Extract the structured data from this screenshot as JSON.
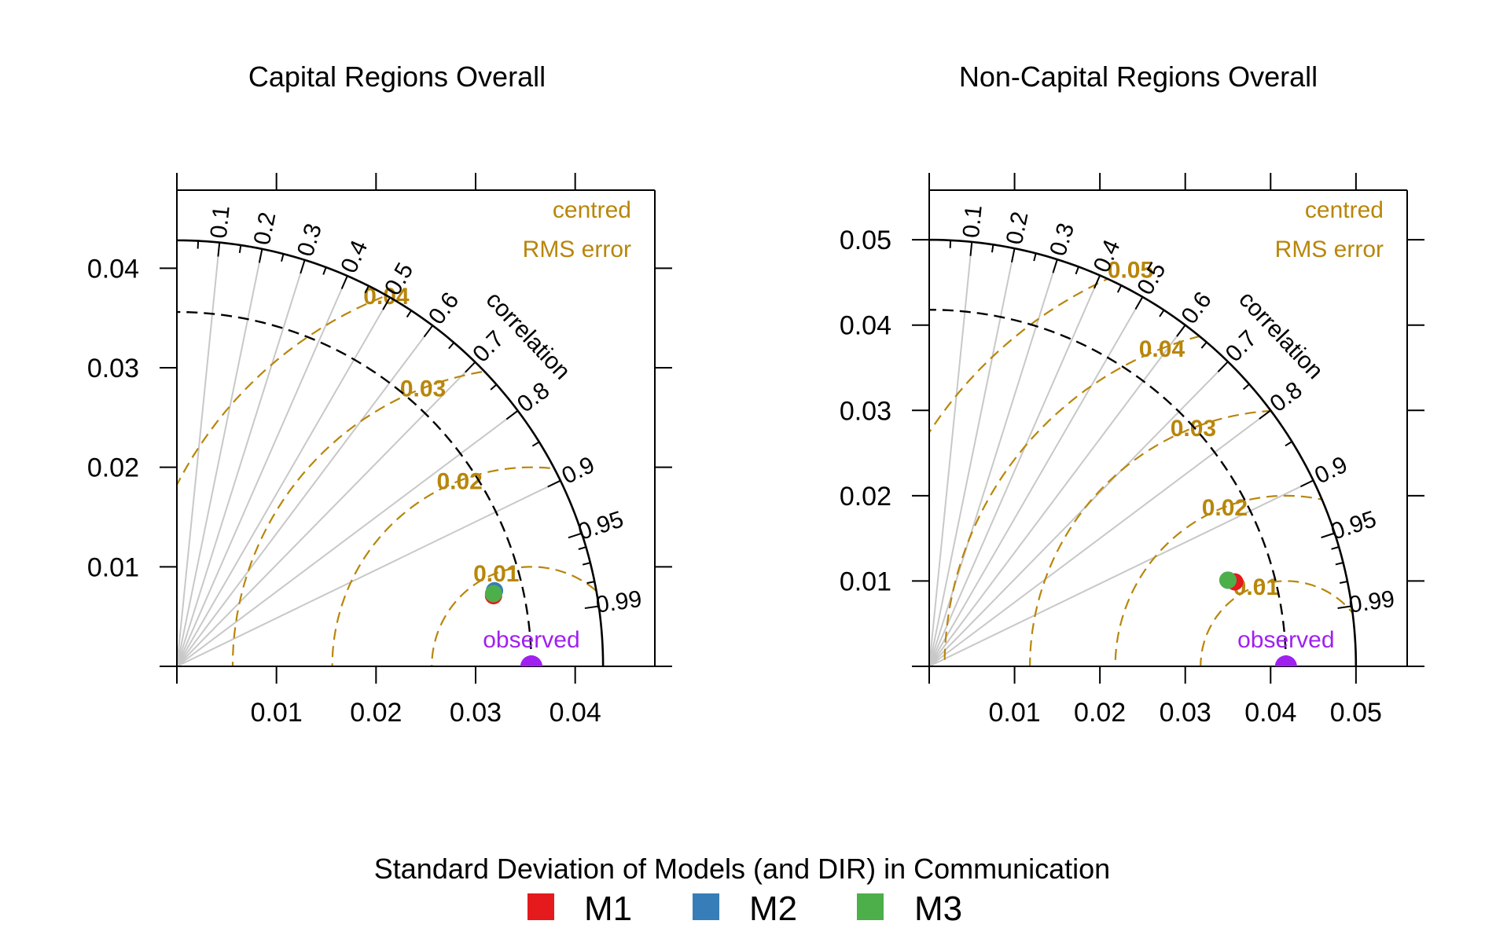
{
  "figure": {
    "legend_title": "Standard Deviation of Models (and DIR) in Communication",
    "legend_items": [
      {
        "label": "M1",
        "color": "#e41a1c"
      },
      {
        "label": "M2",
        "color": "#377eb8"
      },
      {
        "label": "M3",
        "color": "#4daf4a"
      }
    ]
  },
  "colors": {
    "rms": "#b8860b",
    "observed": "#a020f0",
    "correlation_lines": "#c8c8c8",
    "axis": "#000000"
  },
  "texts": {
    "correlation_label": "correlation",
    "rms_legend_line1": "centred",
    "rms_legend_line2": "RMS error",
    "observed_label": "observed"
  },
  "chart_data": [
    {
      "type": "scatter",
      "subtype": "taylor-diagram",
      "title": "Capital Regions Overall",
      "xlim": [
        0,
        0.048
      ],
      "ylim": [
        0,
        0.048
      ],
      "x_ticks": [
        0.01,
        0.02,
        0.03,
        0.04
      ],
      "x_tick_labels": [
        "0.01",
        "0.02",
        "0.03",
        "0.04"
      ],
      "y_ticks": [
        0.01,
        0.02,
        0.03,
        0.04
      ],
      "y_tick_labels": [
        "0.01",
        "0.02",
        "0.03",
        "0.04"
      ],
      "outer_sd_arc": 0.0428,
      "observed_sd": 0.0356,
      "correlation_ticks": [
        0.1,
        0.2,
        0.3,
        0.4,
        0.5,
        0.6,
        0.7,
        0.8,
        0.9,
        0.95,
        0.99
      ],
      "correlation_tick_labels": [
        "0.1",
        "0.2",
        "0.3",
        "0.4",
        "0.5",
        "0.6",
        "0.7",
        "0.8",
        "0.9",
        "0.95",
        "0.99"
      ],
      "rms_contours": [
        0.01,
        0.02,
        0.03,
        0.04
      ],
      "rms_contour_labels": [
        "0.01",
        "0.02",
        "0.03",
        "0.04"
      ],
      "points": [
        {
          "name": "M1",
          "x": 0.0318,
          "y": 0.0071
        },
        {
          "name": "M2",
          "x": 0.0319,
          "y": 0.0076
        },
        {
          "name": "M3",
          "x": 0.0318,
          "y": 0.0073
        }
      ]
    },
    {
      "type": "scatter",
      "subtype": "taylor-diagram",
      "title": "Non-Capital Regions Overall",
      "xlim": [
        0,
        0.056
      ],
      "ylim": [
        0,
        0.056
      ],
      "x_ticks": [
        0.01,
        0.02,
        0.03,
        0.04,
        0.05
      ],
      "x_tick_labels": [
        "0.01",
        "0.02",
        "0.03",
        "0.04",
        "0.05"
      ],
      "y_ticks": [
        0.01,
        0.02,
        0.03,
        0.04,
        0.05
      ],
      "y_tick_labels": [
        "0.01",
        "0.02",
        "0.03",
        "0.04",
        "0.05"
      ],
      "outer_sd_arc": 0.05,
      "observed_sd": 0.0418,
      "correlation_ticks": [
        0.1,
        0.2,
        0.3,
        0.4,
        0.5,
        0.6,
        0.7,
        0.8,
        0.9,
        0.95,
        0.99
      ],
      "correlation_tick_labels": [
        "0.1",
        "0.2",
        "0.3",
        "0.4",
        "0.5",
        "0.6",
        "0.7",
        "0.8",
        "0.9",
        "0.95",
        "0.99"
      ],
      "rms_contours": [
        0.01,
        0.02,
        0.03,
        0.04,
        0.05
      ],
      "rms_contour_labels": [
        "0.01",
        "0.02",
        "0.03",
        "0.04",
        "0.05"
      ],
      "points": [
        {
          "name": "M1",
          "x": 0.0358,
          "y": 0.0099
        },
        {
          "name": "M2",
          "x": 0.035,
          "y": 0.0101
        },
        {
          "name": "M3",
          "x": 0.035,
          "y": 0.0101
        }
      ]
    }
  ]
}
